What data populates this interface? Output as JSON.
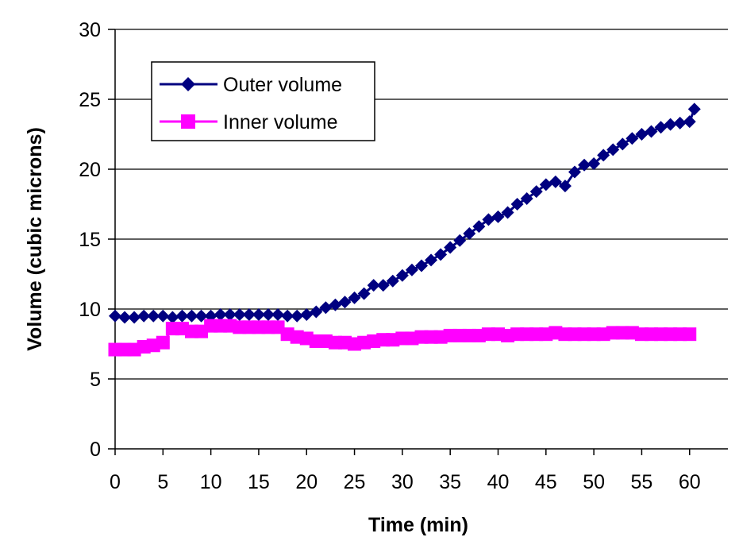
{
  "chart_data": {
    "type": "line",
    "title": "",
    "xlabel": "Time (min)",
    "ylabel": "Volume (cubic microns)",
    "xlim": [
      0,
      64
    ],
    "ylim": [
      0,
      30
    ],
    "x_ticks": [
      0,
      5,
      10,
      15,
      20,
      25,
      30,
      35,
      40,
      45,
      50,
      55,
      60
    ],
    "y_ticks": [
      0,
      5,
      10,
      15,
      20,
      25,
      30
    ],
    "grid": "horizontal",
    "legend_position": "top-left",
    "series": [
      {
        "name": "Outer volume",
        "color": "#000080",
        "marker": "diamond",
        "x": [
          0,
          1,
          2,
          3,
          4,
          5,
          6,
          7,
          8,
          9,
          10,
          11,
          12,
          13,
          14,
          15,
          16,
          17,
          18,
          19,
          20,
          21,
          22,
          23,
          24,
          25,
          26,
          27,
          28,
          29,
          30,
          31,
          32,
          33,
          34,
          35,
          36,
          37,
          38,
          39,
          40,
          41,
          42,
          43,
          44,
          45,
          46,
          47,
          48,
          49,
          50,
          51,
          52,
          53,
          54,
          55,
          56,
          57,
          58,
          59,
          60,
          60.5
        ],
        "y": [
          9.5,
          9.4,
          9.4,
          9.5,
          9.5,
          9.5,
          9.4,
          9.5,
          9.5,
          9.5,
          9.5,
          9.6,
          9.6,
          9.6,
          9.6,
          9.6,
          9.6,
          9.6,
          9.5,
          9.5,
          9.6,
          9.8,
          10.1,
          10.3,
          10.5,
          10.8,
          11.1,
          11.7,
          11.7,
          12.0,
          12.4,
          12.8,
          13.1,
          13.5,
          13.9,
          14.4,
          14.9,
          15.4,
          15.9,
          16.4,
          16.6,
          16.9,
          17.5,
          17.9,
          18.4,
          18.9,
          19.1,
          18.8,
          19.8,
          20.3,
          20.4,
          21.0,
          21.4,
          21.8,
          22.2,
          22.5,
          22.7,
          23.0,
          23.2,
          23.3,
          23.4,
          24.3
        ]
      },
      {
        "name": "Inner volume",
        "color": "#FF00FF",
        "marker": "square",
        "x": [
          0,
          1,
          2,
          3,
          4,
          5,
          6,
          7,
          8,
          9,
          10,
          11,
          12,
          13,
          14,
          15,
          16,
          17,
          18,
          19,
          20,
          21,
          22,
          23,
          24,
          25,
          26,
          27,
          28,
          29,
          30,
          31,
          32,
          33,
          34,
          35,
          36,
          37,
          38,
          39,
          40,
          41,
          42,
          43,
          44,
          45,
          46,
          47,
          48,
          49,
          50,
          51,
          52,
          53,
          54,
          55,
          56,
          57,
          58,
          59,
          60
        ],
        "y": [
          7.1,
          7.1,
          7.1,
          7.3,
          7.4,
          7.6,
          8.6,
          8.6,
          8.4,
          8.4,
          8.8,
          8.8,
          8.8,
          8.7,
          8.7,
          8.7,
          8.7,
          8.7,
          8.2,
          8.0,
          7.9,
          7.7,
          7.7,
          7.6,
          7.6,
          7.5,
          7.6,
          7.7,
          7.8,
          7.8,
          7.9,
          7.9,
          8.0,
          8.0,
          8.0,
          8.1,
          8.1,
          8.1,
          8.1,
          8.2,
          8.2,
          8.1,
          8.2,
          8.2,
          8.2,
          8.2,
          8.3,
          8.2,
          8.2,
          8.2,
          8.2,
          8.2,
          8.3,
          8.3,
          8.3,
          8.2,
          8.2,
          8.2,
          8.2,
          8.2,
          8.2
        ]
      }
    ]
  }
}
